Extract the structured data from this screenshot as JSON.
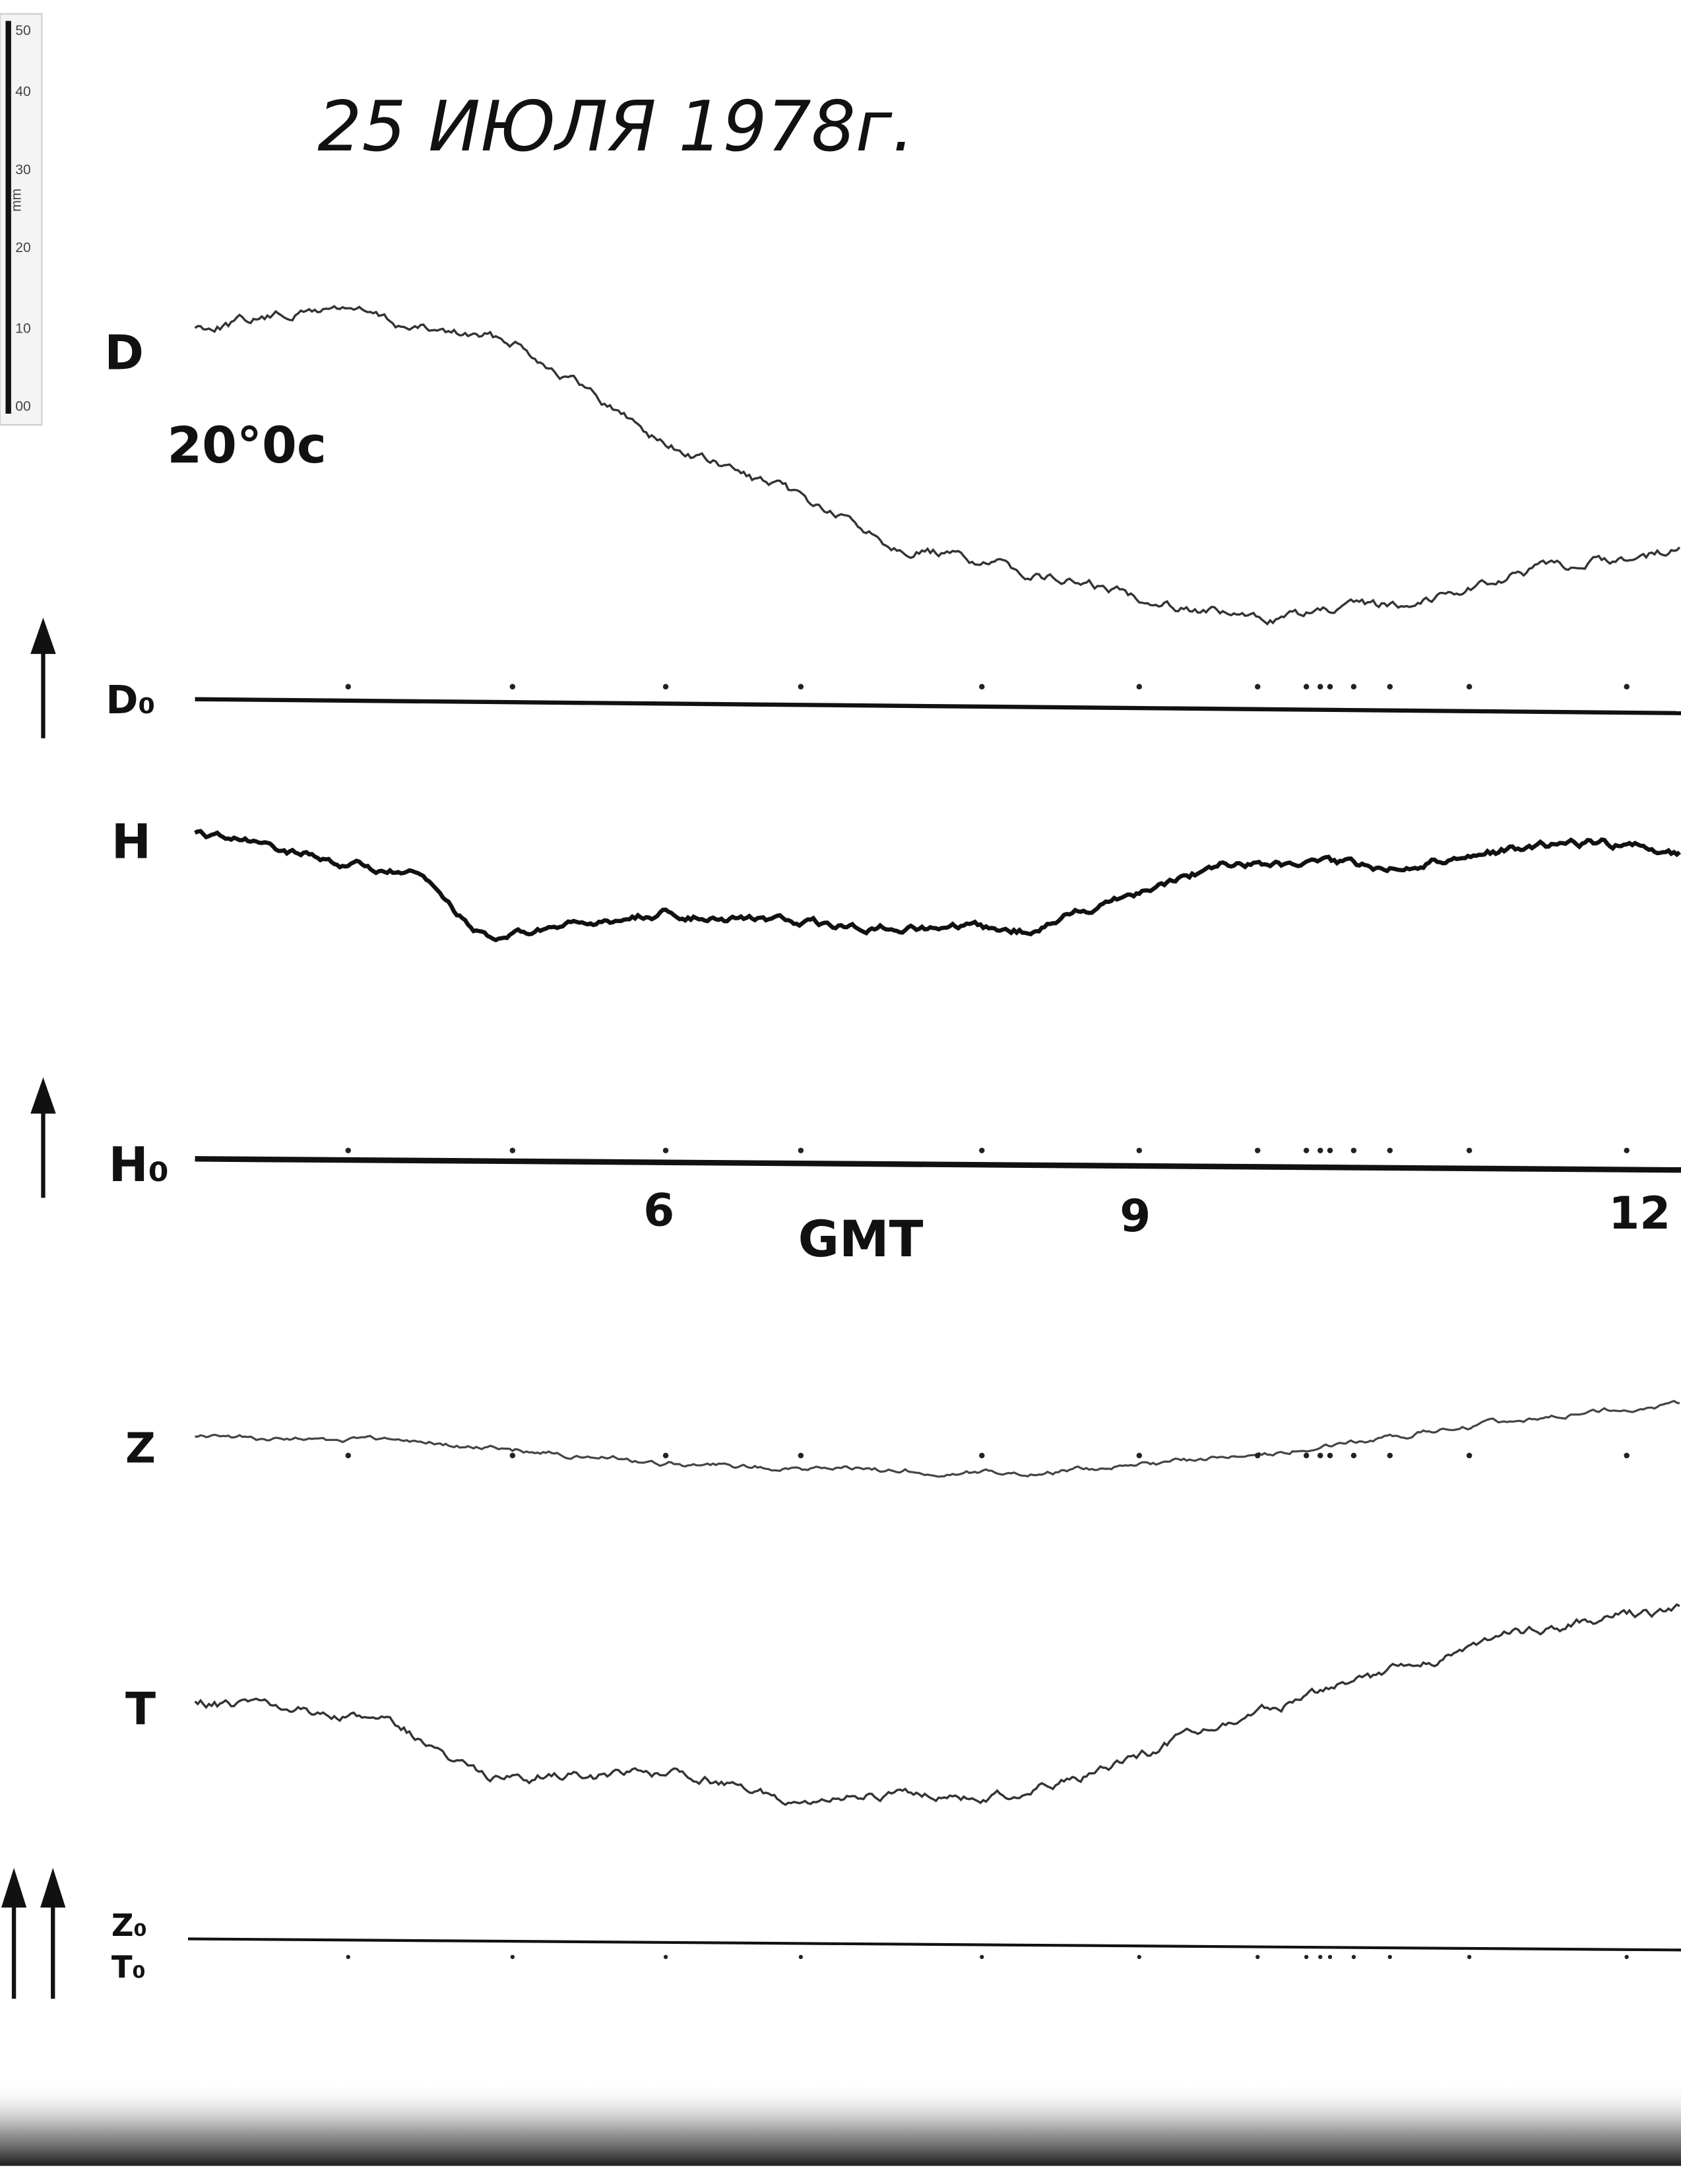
{
  "header": {
    "date": "25 ИЮЛЯ 1978г."
  },
  "scale": {
    "ticks": [
      "50",
      "40",
      "30",
      "20",
      "10",
      "00"
    ],
    "unit": "mm"
  },
  "traces": [
    {
      "label": "D",
      "note": "20°0c"
    },
    {
      "label": "D₀"
    },
    {
      "label": "H"
    },
    {
      "label": "H₀"
    },
    {
      "label": "Z"
    },
    {
      "label": "T"
    },
    {
      "label": "Z₀"
    },
    {
      "label": "T₀"
    }
  ],
  "time_axis": {
    "labels": [
      "6",
      "9",
      "12"
    ],
    "title": "GMT"
  }
}
